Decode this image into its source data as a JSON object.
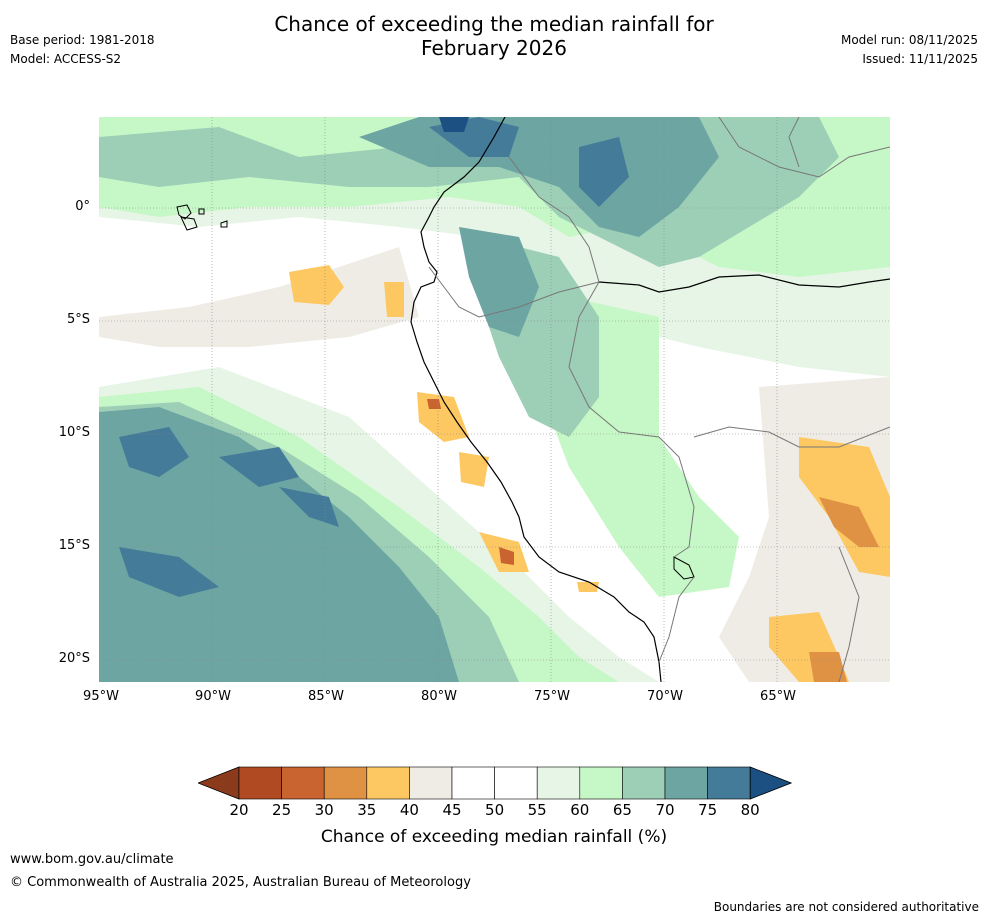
{
  "header": {
    "title_line1": "Chance of exceeding the median rainfall for",
    "title_line2": "February 2026",
    "base_period": "Base period: 1981-2018",
    "model": "Model: ACCESS-S2",
    "model_run": "Model run: 08/11/2025",
    "issued": "Issued: 11/11/2025"
  },
  "map": {
    "lat_ticks": [
      "0°",
      "5°S",
      "10°S",
      "15°S",
      "20°S"
    ],
    "lon_ticks": [
      "95°W",
      "90°W",
      "85°W",
      "80°W",
      "75°W",
      "70°W",
      "65°W"
    ]
  },
  "colorbar": {
    "title": "Chance of exceeding median rainfall (%)",
    "tick_labels": [
      "20",
      "25",
      "30",
      "35",
      "40",
      "45",
      "50",
      "55",
      "60",
      "65",
      "70",
      "75",
      "80"
    ],
    "colors": [
      "#8b3a1c",
      "#b04a22",
      "#c96330",
      "#e09244",
      "#fdc862",
      "#efece6",
      "#ffffff",
      "#ffffff",
      "#e7f5e6",
      "#c6f7c6",
      "#9ccfb6",
      "#6da5a3",
      "#447b99",
      "#1c4f82"
    ]
  },
  "footer": {
    "website": "www.bom.gov.au/climate",
    "copyright": "© Commonwealth of Australia 2025, Australian Bureau of Meteorology",
    "disclaimer": "Boundaries are not considered authoritative"
  }
}
